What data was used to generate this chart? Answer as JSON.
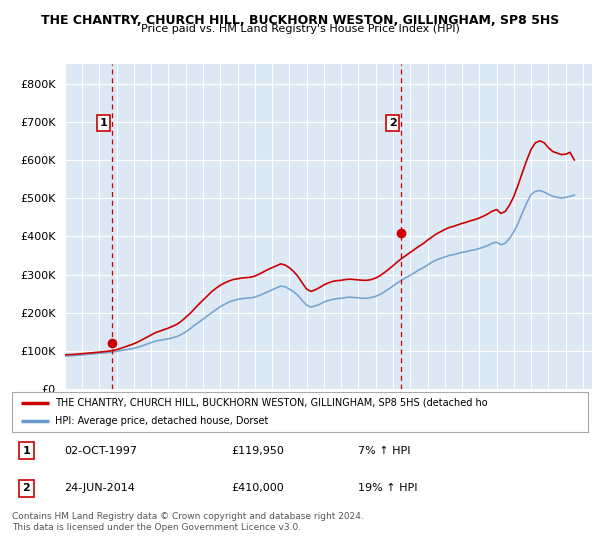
{
  "title": "THE CHANTRY, CHURCH HILL, BUCKHORN WESTON, GILLINGHAM, SP8 5HS",
  "subtitle": "Price paid vs. HM Land Registry's House Price Index (HPI)",
  "ylim": [
    0,
    850000
  ],
  "xlim_start": 1995.0,
  "xlim_end": 2025.5,
  "background_color": "#ffffff",
  "plot_bg_color": "#dce9f5",
  "grid_color": "#ffffff",
  "red_line_color": "#cc0000",
  "blue_line_color": "#6699cc",
  "marker_color": "#cc0000",
  "dashed_line_color": "#cc0000",
  "sale1_x": 1997.75,
  "sale1_y": 119950,
  "sale2_x": 2014.48,
  "sale2_y": 410000,
  "legend_red_label": "THE CHANTRY, CHURCH HILL, BUCKHORN WESTON, GILLINGHAM, SP8 5HS (detached ho",
  "legend_blue_label": "HPI: Average price, detached house, Dorset",
  "footnote": "Contains HM Land Registry data © Crown copyright and database right 2024.\nThis data is licensed under the Open Government Licence v3.0.",
  "hpi_data_x": [
    1995.0,
    1995.25,
    1995.5,
    1995.75,
    1996.0,
    1996.25,
    1996.5,
    1996.75,
    1997.0,
    1997.25,
    1997.5,
    1997.75,
    1998.0,
    1998.25,
    1998.5,
    1998.75,
    1999.0,
    1999.25,
    1999.5,
    1999.75,
    2000.0,
    2000.25,
    2000.5,
    2000.75,
    2001.0,
    2001.25,
    2001.5,
    2001.75,
    2002.0,
    2002.25,
    2002.5,
    2002.75,
    2003.0,
    2003.25,
    2003.5,
    2003.75,
    2004.0,
    2004.25,
    2004.5,
    2004.75,
    2005.0,
    2005.25,
    2005.5,
    2005.75,
    2006.0,
    2006.25,
    2006.5,
    2006.75,
    2007.0,
    2007.25,
    2007.5,
    2007.75,
    2008.0,
    2008.25,
    2008.5,
    2008.75,
    2009.0,
    2009.25,
    2009.5,
    2009.75,
    2010.0,
    2010.25,
    2010.5,
    2010.75,
    2011.0,
    2011.25,
    2011.5,
    2011.75,
    2012.0,
    2012.25,
    2012.5,
    2012.75,
    2013.0,
    2013.25,
    2013.5,
    2013.75,
    2014.0,
    2014.25,
    2014.5,
    2014.75,
    2015.0,
    2015.25,
    2015.5,
    2015.75,
    2016.0,
    2016.25,
    2016.5,
    2016.75,
    2017.0,
    2017.25,
    2017.5,
    2017.75,
    2018.0,
    2018.25,
    2018.5,
    2018.75,
    2019.0,
    2019.25,
    2019.5,
    2019.75,
    2020.0,
    2020.25,
    2020.5,
    2020.75,
    2021.0,
    2021.25,
    2021.5,
    2021.75,
    2022.0,
    2022.25,
    2022.5,
    2022.75,
    2023.0,
    2023.25,
    2023.5,
    2023.75,
    2024.0,
    2024.25,
    2024.5
  ],
  "hpi_data_y": [
    87000,
    87500,
    88000,
    89000,
    90000,
    91000,
    92000,
    93000,
    94000,
    95000,
    96000,
    97000,
    99000,
    101000,
    103000,
    105000,
    107000,
    110000,
    114000,
    118000,
    122000,
    126000,
    128000,
    130000,
    132000,
    135000,
    138000,
    143000,
    150000,
    158000,
    167000,
    175000,
    183000,
    192000,
    200000,
    208000,
    216000,
    222000,
    228000,
    232000,
    235000,
    237000,
    238000,
    239000,
    241000,
    245000,
    250000,
    255000,
    260000,
    265000,
    270000,
    268000,
    262000,
    255000,
    245000,
    232000,
    220000,
    215000,
    218000,
    222000,
    228000,
    232000,
    235000,
    237000,
    238000,
    240000,
    241000,
    240000,
    239000,
    238000,
    238000,
    240000,
    243000,
    248000,
    255000,
    262000,
    270000,
    278000,
    285000,
    292000,
    298000,
    305000,
    312000,
    318000,
    325000,
    332000,
    338000,
    342000,
    346000,
    350000,
    352000,
    355000,
    358000,
    360000,
    363000,
    365000,
    368000,
    372000,
    376000,
    382000,
    385000,
    378000,
    382000,
    395000,
    412000,
    435000,
    462000,
    488000,
    510000,
    518000,
    520000,
    516000,
    510000,
    505000,
    502000,
    500000,
    502000,
    505000,
    508000
  ],
  "red_hpi_y": [
    90000,
    90500,
    91000,
    92000,
    93000,
    94000,
    95000,
    96000,
    97000,
    98000,
    99500,
    101000,
    103500,
    107000,
    111000,
    115000,
    119000,
    124000,
    130000,
    136000,
    142000,
    148000,
    152000,
    156000,
    160000,
    165000,
    170000,
    178000,
    188000,
    198000,
    210000,
    222000,
    233000,
    244000,
    255000,
    264000,
    272000,
    278000,
    283000,
    287000,
    289000,
    291000,
    292000,
    293000,
    296000,
    301000,
    307000,
    313000,
    318000,
    323000,
    328000,
    325000,
    318000,
    308000,
    295000,
    278000,
    262000,
    256000,
    260000,
    266000,
    273000,
    278000,
    282000,
    284000,
    285000,
    287000,
    288000,
    287000,
    286000,
    285000,
    285000,
    287000,
    291000,
    297000,
    305000,
    314000,
    323000,
    333000,
    342000,
    350000,
    358000,
    366000,
    374000,
    381000,
    390000,
    398000,
    406000,
    412000,
    418000,
    423000,
    426000,
    430000,
    434000,
    437000,
    441000,
    444000,
    448000,
    453000,
    459000,
    466000,
    470000,
    460000,
    465000,
    482000,
    505000,
    535000,
    568000,
    600000,
    628000,
    645000,
    650000,
    645000,
    632000,
    622000,
    618000,
    614000,
    615000,
    620000,
    600000
  ]
}
